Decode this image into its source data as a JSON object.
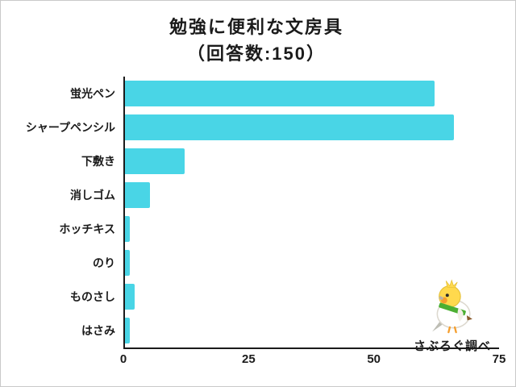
{
  "chart_data": {
    "type": "bar",
    "orientation": "horizontal",
    "title": "勉強に便利な文房具",
    "subtitle": "（回答数:150）",
    "categories": [
      "蛍光ペン",
      "シャープペンシル",
      "下敷き",
      "消しゴム",
      "ホッチキス",
      "のり",
      "ものさし",
      "はさみ"
    ],
    "values": [
      62,
      66,
      12,
      5,
      1,
      1,
      2,
      1
    ],
    "xlim": [
      0,
      75
    ],
    "xticks": [
      0,
      25,
      50,
      75
    ],
    "bar_color": "#49d5e6",
    "grid": false,
    "legend": "none"
  },
  "mascot": {
    "icon": "bird-with-pencil-icon",
    "credit": "さぶろぐ調べ"
  }
}
